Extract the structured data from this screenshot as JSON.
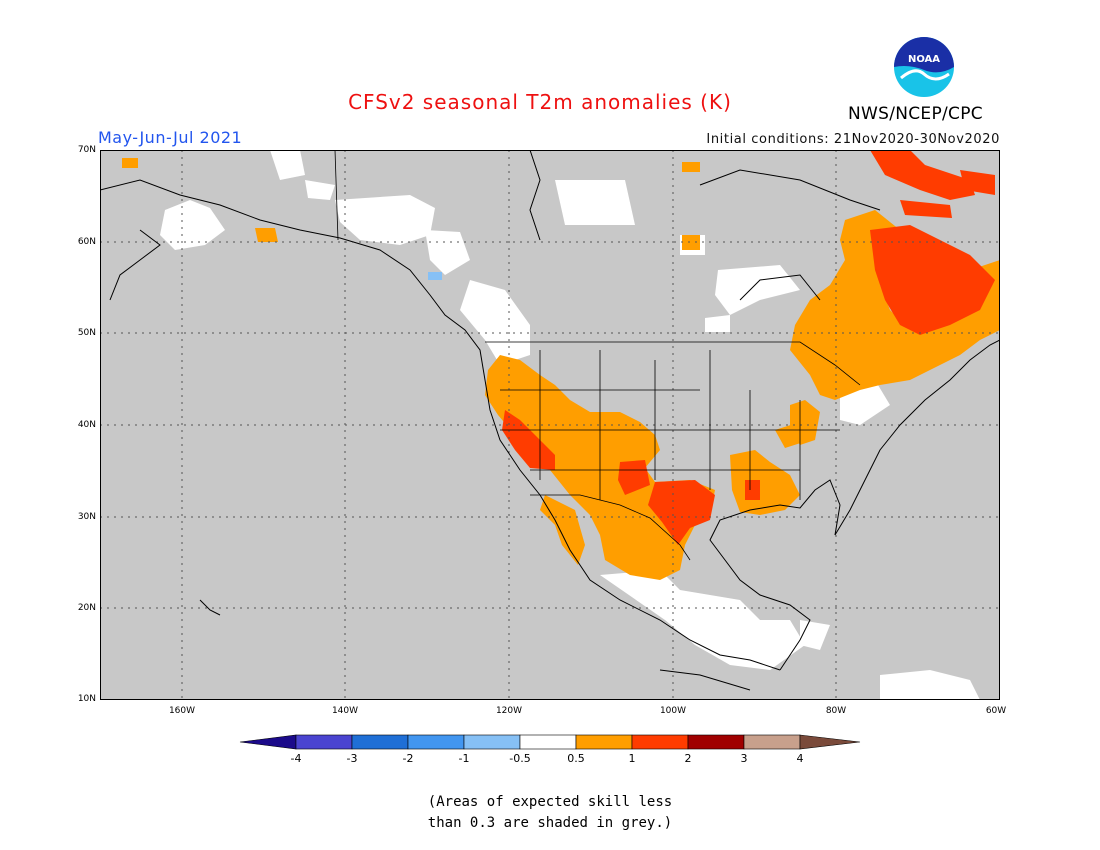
{
  "header": {
    "title": "CFSv2 seasonal T2m anomalies (K)",
    "period": "May-Jun-Jul 2021",
    "initial_conditions": "Initial conditions: 21Nov2020-30Nov2020",
    "agency": "NWS/NCEP/CPC",
    "logo_text": "NOAA"
  },
  "map": {
    "lat_labels": [
      "70N",
      "60N",
      "50N",
      "40N",
      "30N",
      "20N",
      "10N"
    ],
    "lon_labels": [
      "160W",
      "140W",
      "120W",
      "100W",
      "80W",
      "60W"
    ],
    "lat_range": [
      10,
      70
    ],
    "lon_range": [
      -170,
      -60
    ]
  },
  "legend": {
    "labels": [
      "-4",
      "-3",
      "-2",
      "-1",
      "-0.5",
      "0.5",
      "1",
      "2",
      "3",
      "4"
    ],
    "colors": {
      "below_m4": "#1b0a8a",
      "m4_m3": "#4a44d0",
      "m3_m2": "#1f6fd6",
      "m2_m1": "#4296f0",
      "m1_m05": "#86c0f5",
      "m05_05": "#ffffff",
      "05_1": "#ff9e00",
      "1_2": "#ff3c00",
      "2_3": "#a00000",
      "3_4": "#c8a08c",
      "above_4": "#7a4a3a",
      "no_skill": "#c8c8c8"
    }
  },
  "footnote": {
    "line1": "(Areas of expected skill less",
    "line2": "than 0.3 are shaded in grey.)"
  }
}
